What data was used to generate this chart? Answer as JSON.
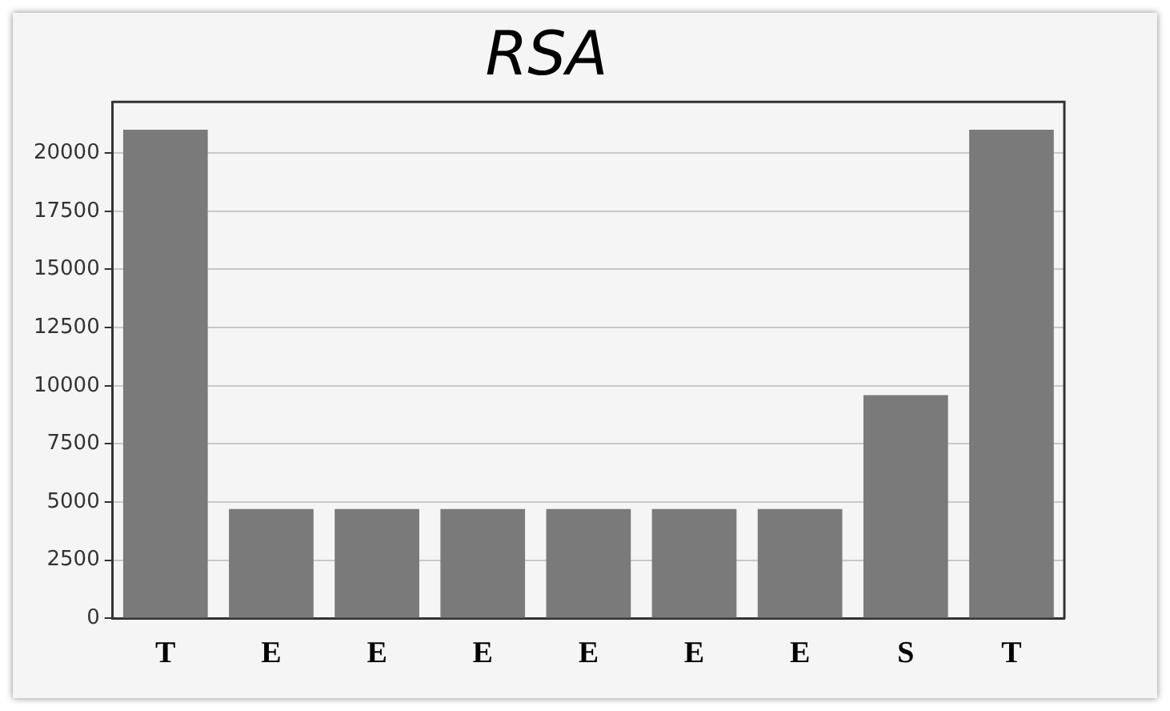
{
  "chart_data": {
    "type": "bar",
    "title": "RSA",
    "categories": [
      "T",
      "E",
      "E",
      "E",
      "E",
      "E",
      "E",
      "S",
      "T"
    ],
    "values": [
      21000,
      4700,
      4700,
      4700,
      4700,
      4700,
      4700,
      9600,
      21000
    ],
    "color": "#7a7a7a",
    "ylim": [
      0,
      22200
    ],
    "yticks": [
      0,
      2500,
      5000,
      7500,
      10000,
      12500,
      15000,
      17500,
      20000
    ],
    "grid": "y",
    "legend": false
  }
}
